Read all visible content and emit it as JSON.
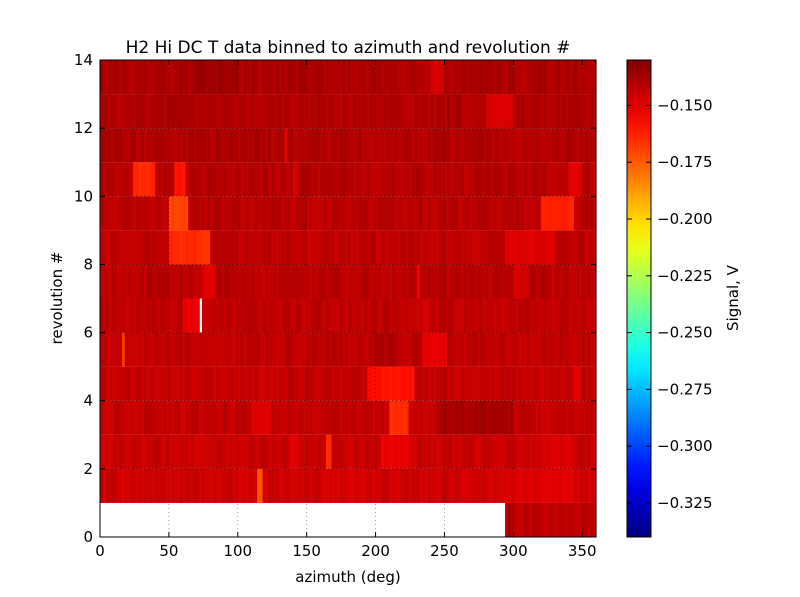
{
  "chart_data": {
    "type": "heatmap",
    "title": "H2 Hi DC T data binned to azimuth and revolution #",
    "xlabel": "azimuth (deg)",
    "ylabel": "revolution #",
    "xlim": [
      0,
      360
    ],
    "ylim": [
      0,
      14
    ],
    "xticks": [
      "0",
      "50",
      "100",
      "150",
      "200",
      "250",
      "300",
      "350"
    ],
    "yticks": [
      "0",
      "2",
      "4",
      "6",
      "8",
      "10",
      "12",
      "14"
    ],
    "grid": true,
    "colormap": "jet",
    "colorbar": {
      "label": "Signal, V",
      "vmin": -0.34,
      "vmax": -0.13,
      "ticks": [
        "−0.150",
        "−0.175",
        "−0.200",
        "−0.225",
        "−0.250",
        "−0.275",
        "−0.300",
        "−0.325"
      ],
      "tick_values": [
        -0.15,
        -0.175,
        -0.2,
        -0.225,
        -0.25,
        -0.275,
        -0.3,
        -0.325
      ]
    },
    "rows": [
      {
        "rev": 0,
        "base": -0.142,
        "missing": [
          [
            0,
            295
          ]
        ],
        "features": []
      },
      {
        "rev": 1,
        "base": -0.146,
        "missing": [],
        "features": [
          [
            17,
            19,
            -0.15
          ],
          [
            115,
            118,
            -0.175
          ],
          [
            160,
            200,
            -0.148
          ],
          [
            300,
            345,
            -0.15
          ]
        ]
      },
      {
        "rev": 2,
        "base": -0.145,
        "missing": [],
        "features": [
          [
            138,
            145,
            -0.15
          ],
          [
            165,
            168,
            -0.165
          ],
          [
            205,
            225,
            -0.152
          ],
          [
            320,
            345,
            -0.148
          ]
        ]
      },
      {
        "rev": 3,
        "base": -0.144,
        "missing": [],
        "features": [
          [
            110,
            125,
            -0.15
          ],
          [
            210,
            225,
            -0.165
          ],
          [
            245,
            300,
            -0.138
          ]
        ]
      },
      {
        "rev": 4,
        "base": -0.144,
        "missing": [],
        "features": [
          [
            195,
            228,
            -0.16
          ],
          [
            320,
            323,
            -0.15
          ],
          [
            345,
            350,
            -0.15
          ]
        ]
      },
      {
        "rev": 5,
        "base": -0.143,
        "missing": [],
        "features": [
          [
            16,
            19,
            -0.168
          ],
          [
            235,
            252,
            -0.152
          ],
          [
            200,
            215,
            -0.14
          ]
        ]
      },
      {
        "rev": 6,
        "base": -0.143,
        "missing": [
          [
            72,
            74
          ]
        ],
        "features": [
          [
            60,
            72,
            -0.152
          ],
          [
            235,
            240,
            -0.148
          ]
        ]
      },
      {
        "rev": 7,
        "base": -0.142,
        "missing": [],
        "features": [
          [
            75,
            85,
            -0.15
          ],
          [
            230,
            233,
            -0.155
          ],
          [
            300,
            310,
            -0.148
          ]
        ]
      },
      {
        "rev": 8,
        "base": -0.143,
        "missing": [],
        "features": [
          [
            50,
            80,
            -0.165
          ],
          [
            295,
            330,
            -0.15
          ]
        ]
      },
      {
        "rev": 9,
        "base": -0.142,
        "missing": [],
        "features": [
          [
            50,
            65,
            -0.17
          ],
          [
            320,
            345,
            -0.163
          ]
        ]
      },
      {
        "rev": 10,
        "base": -0.141,
        "missing": [],
        "features": [
          [
            25,
            40,
            -0.165
          ],
          [
            55,
            62,
            -0.16
          ],
          [
            140,
            145,
            -0.148
          ],
          [
            340,
            350,
            -0.15
          ]
        ]
      },
      {
        "rev": 11,
        "base": -0.14,
        "missing": [],
        "features": [
          [
            135,
            137,
            -0.15
          ],
          [
            300,
            330,
            -0.142
          ]
        ]
      },
      {
        "rev": 12,
        "base": -0.14,
        "missing": [],
        "features": [
          [
            280,
            300,
            -0.148
          ]
        ]
      },
      {
        "rev": 13,
        "base": -0.139,
        "missing": [],
        "features": [
          [
            70,
            100,
            -0.136
          ],
          [
            240,
            250,
            -0.148
          ]
        ]
      }
    ]
  }
}
